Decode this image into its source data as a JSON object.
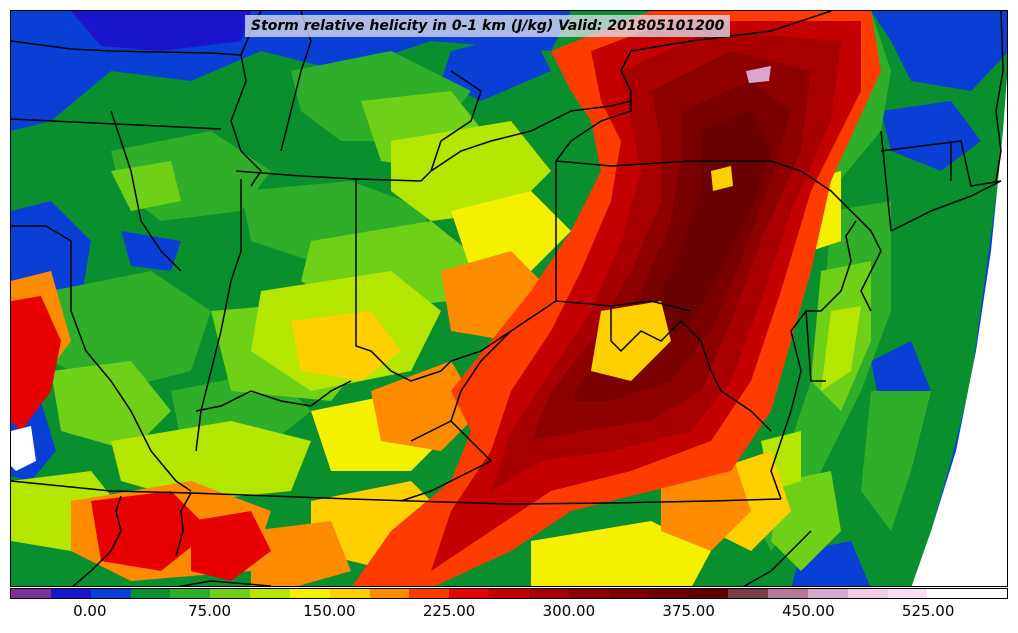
{
  "title": "Storm relative helicity in 0-1 km (J/kg) Valid: 201805101200",
  "colors": {
    "background": "#ffffff",
    "boundary": "#000000",
    "land_base": "#0a8f2e"
  },
  "colorbar": {
    "swatches": [
      "#7b3294",
      "#1a14cc",
      "#0a3fd6",
      "#0a8f2e",
      "#2fae2a",
      "#6fd018",
      "#b4e600",
      "#f4f000",
      "#ffd000",
      "#ff8c00",
      "#ff3c00",
      "#e60000",
      "#c40000",
      "#a80000",
      "#8e0000",
      "#7a0000",
      "#6a0000",
      "#5c0000",
      "#7a3c46",
      "#b47896",
      "#d8a8cc",
      "#f0cce8",
      "#f8e0f2",
      "#ffffff",
      "#ffffff"
    ],
    "tick_labels": [
      "0.00",
      "75.00",
      "150.00",
      "225.00",
      "300.00",
      "375.00",
      "450.00",
      "525.00"
    ]
  }
}
